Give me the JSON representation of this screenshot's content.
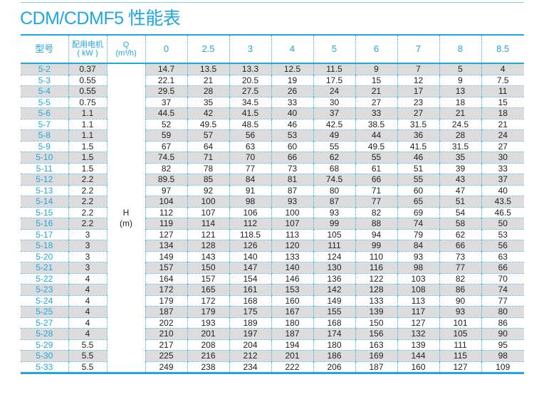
{
  "title": "CDM/CDMF5 性能表",
  "headers": {
    "model": "型号",
    "power": "配用电机",
    "power_unit": "( kW )",
    "q": "Q",
    "q_unit": "(m³/h)",
    "flows": [
      "0",
      "2.5",
      "3",
      "4",
      "5",
      "6",
      "7",
      "8",
      "8.5"
    ]
  },
  "h_label": "H",
  "h_unit": "(m)",
  "rows": [
    [
      "5-2",
      "0.37",
      "14.7",
      "13.5",
      "13.3",
      "12.5",
      "11.5",
      "9",
      "7",
      "5",
      "4"
    ],
    [
      "5-3",
      "0.55",
      "22.1",
      "21",
      "20.5",
      "19",
      "17.5",
      "15",
      "12",
      "9",
      "7.5"
    ],
    [
      "5-4",
      "0.55",
      "29.5",
      "28",
      "27.5",
      "26",
      "24",
      "21",
      "17",
      "13",
      "11"
    ],
    [
      "5-5",
      "0.75",
      "37",
      "35",
      "34.5",
      "33",
      "30",
      "27",
      "23",
      "18",
      "15"
    ],
    [
      "5-6",
      "1.1",
      "44.5",
      "42",
      "41.5",
      "40",
      "37",
      "33",
      "27",
      "21",
      "18"
    ],
    [
      "5-7",
      "1.1",
      "52",
      "49.5",
      "48.5",
      "46",
      "42.5",
      "38.5",
      "31.5",
      "24.5",
      "21"
    ],
    [
      "5-8",
      "1.1",
      "59",
      "57",
      "56",
      "53",
      "49",
      "44",
      "36",
      "28",
      "24"
    ],
    [
      "5-9",
      "1.5",
      "67",
      "64",
      "63",
      "60",
      "55",
      "49.5",
      "41.5",
      "31.5",
      "27"
    ],
    [
      "5-10",
      "1.5",
      "74.5",
      "71",
      "70",
      "66",
      "62",
      "55",
      "46",
      "35",
      "30"
    ],
    [
      "5-11",
      "1.5",
      "82",
      "78",
      "77",
      "73",
      "68",
      "61",
      "51",
      "39",
      "33"
    ],
    [
      "5-12",
      "2.2",
      "89.5",
      "85",
      "84",
      "81",
      "74.5",
      "66",
      "55",
      "43",
      "37"
    ],
    [
      "5-13",
      "2.2",
      "97",
      "92",
      "91",
      "87",
      "80",
      "71",
      "60",
      "47",
      "40"
    ],
    [
      "5-14",
      "2.2",
      "104",
      "100",
      "98",
      "93",
      "87",
      "77",
      "65",
      "51",
      "43.5"
    ],
    [
      "5-15",
      "2.2",
      "112",
      "107",
      "106",
      "100",
      "93",
      "82",
      "69",
      "54",
      "46.5"
    ],
    [
      "5-16",
      "2.2",
      "119",
      "114",
      "112",
      "107",
      "99",
      "88",
      "74",
      "58",
      "50"
    ],
    [
      "5-17",
      "3",
      "127",
      "121",
      "118.5",
      "113",
      "105",
      "94",
      "79",
      "62",
      "53"
    ],
    [
      "5-18",
      "3",
      "134",
      "128",
      "126",
      "120",
      "111",
      "99",
      "84",
      "66",
      "56"
    ],
    [
      "5-20",
      "3",
      "149",
      "143",
      "140",
      "133",
      "124",
      "110",
      "93",
      "73",
      "63"
    ],
    [
      "5-21",
      "3",
      "157",
      "150",
      "147",
      "140",
      "130",
      "116",
      "98",
      "77",
      "66"
    ],
    [
      "5-22",
      "4",
      "164",
      "157",
      "154",
      "146",
      "136",
      "122",
      "103",
      "82",
      "70"
    ],
    [
      "5-23",
      "4",
      "172",
      "165",
      "161",
      "153",
      "142",
      "128",
      "108",
      "86",
      "74"
    ],
    [
      "5-24",
      "4",
      "179",
      "172",
      "168",
      "160",
      "149",
      "133",
      "113",
      "90",
      "77"
    ],
    [
      "5-25",
      "4",
      "187",
      "179",
      "175",
      "167",
      "155",
      "139",
      "117",
      "93",
      "80"
    ],
    [
      "5-27",
      "4",
      "202",
      "193",
      "189",
      "180",
      "168",
      "150",
      "127",
      "101",
      "86"
    ],
    [
      "5-28",
      "4",
      "210",
      "201",
      "197",
      "187",
      "174",
      "156",
      "132",
      "105",
      "90"
    ],
    [
      "5-29",
      "5.5",
      "217",
      "208",
      "204",
      "194",
      "180",
      "163",
      "139",
      "111",
      "95"
    ],
    [
      "5-30",
      "5.5",
      "225",
      "216",
      "212",
      "201",
      "186",
      "169",
      "144",
      "115",
      "98"
    ],
    [
      "5-33",
      "5.5",
      "249",
      "238",
      "234",
      "222",
      "206",
      "187",
      "160",
      "127",
      "109"
    ]
  ]
}
